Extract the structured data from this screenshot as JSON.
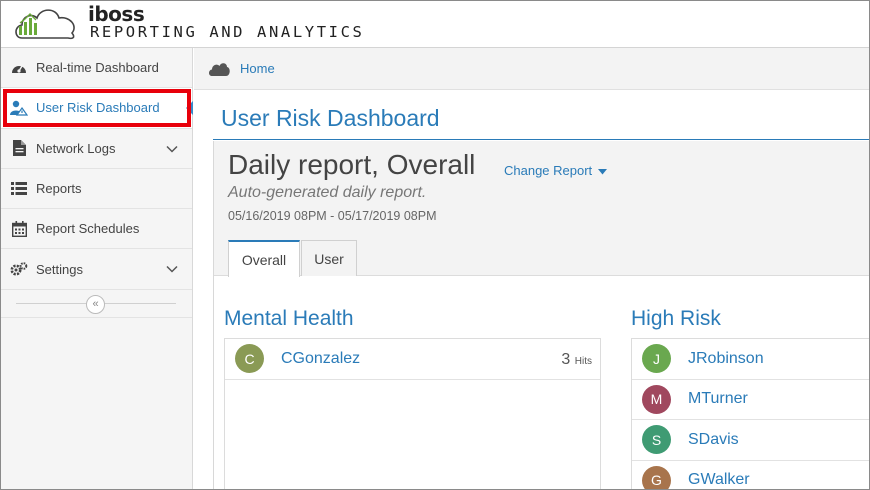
{
  "header": {
    "brand": "iboss",
    "tagline": "REPORTING AND ANALYTICS"
  },
  "sidebar": {
    "items": [
      {
        "label": "Real-time Dashboard",
        "icon": "dashboard-icon"
      },
      {
        "label": "User Risk Dashboard",
        "icon": "user-risk-icon",
        "active": true
      },
      {
        "label": "Network Logs",
        "icon": "document-icon",
        "has_children": true
      },
      {
        "label": "Reports",
        "icon": "list-icon"
      },
      {
        "label": "Report Schedules",
        "icon": "calendar-icon"
      },
      {
        "label": "Settings",
        "icon": "gears-icon",
        "has_children": true
      }
    ],
    "collapse_glyph": "«"
  },
  "breadcrumb": {
    "home_label": "Home"
  },
  "page": {
    "title": "User Risk Dashboard"
  },
  "report": {
    "title": "Daily report, Overall",
    "change_label": "Change Report",
    "description": "Auto-generated daily report.",
    "range": "05/16/2019 08PM - 05/17/2019 08PM",
    "tabs": [
      {
        "label": "Overall",
        "active": true
      },
      {
        "label": "User",
        "active": false
      }
    ]
  },
  "panels": {
    "mental_health": {
      "heading": "Mental Health",
      "users": [
        {
          "initial": "C",
          "name": "CGonzalez",
          "hits": "3",
          "hits_unit": "Hits",
          "color": "#8a9a55"
        }
      ]
    },
    "high_risk": {
      "heading": "High Risk",
      "users": [
        {
          "initial": "J",
          "name": "JRobinson",
          "color": "#6aa84f"
        },
        {
          "initial": "M",
          "name": "MTurner",
          "color": "#a0485e"
        },
        {
          "initial": "S",
          "name": "SDavis",
          "color": "#3f9b73"
        },
        {
          "initial": "G",
          "name": "GWalker",
          "color": "#a8744c"
        }
      ]
    }
  },
  "colors": {
    "accent": "#2a7bb8",
    "highlight": "#e8000b"
  }
}
